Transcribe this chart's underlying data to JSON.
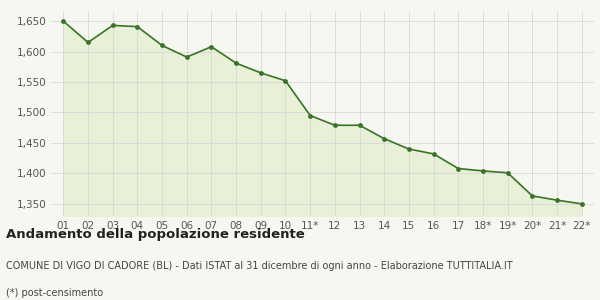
{
  "x_labels": [
    "01",
    "02",
    "03",
    "04",
    "05",
    "06",
    "07",
    "08",
    "09",
    "10",
    "11*",
    "12",
    "13",
    "14",
    "15",
    "16",
    "17",
    "18*",
    "19*",
    "20*",
    "21*",
    "22*"
  ],
  "values": [
    1650,
    1615,
    1643,
    1641,
    1610,
    1591,
    1608,
    1581,
    1565,
    1552,
    1495,
    1479,
    1479,
    1457,
    1440,
    1432,
    1408,
    1404,
    1401,
    1363,
    1356,
    1350
  ],
  "line_color": "#3a7328",
  "fill_color": "#e8f0d8",
  "marker_color": "#3a7328",
  "bg_color": "#f7f7f2",
  "grid_color": "#d8d8d8",
  "ylim": [
    1330,
    1665
  ],
  "yticks": [
    1350,
    1400,
    1450,
    1500,
    1550,
    1600,
    1650
  ],
  "title": "Andamento della popolazione residente",
  "subtitle": "COMUNE DI VIGO DI CADORE (BL) - Dati ISTAT al 31 dicembre di ogni anno - Elaborazione TUTTITALIA.IT",
  "footnote": "(*) post-censimento",
  "title_fontsize": 9.5,
  "subtitle_fontsize": 7.0,
  "footnote_fontsize": 7.0,
  "tick_fontsize": 7.5
}
